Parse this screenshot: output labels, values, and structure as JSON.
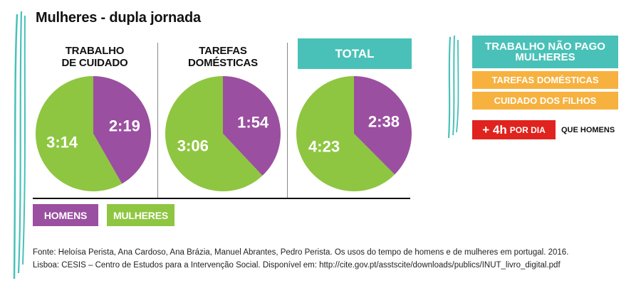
{
  "title": "Mulheres - dupla jornada",
  "colors": {
    "homens": "#9b4fa0",
    "mulheres": "#8ec641",
    "teal": "#49c1b8",
    "orange": "#f7b13f",
    "red": "#e0231e"
  },
  "chart_data": [
    {
      "type": "pie",
      "title": "TRABALHO\nDE CUIDADO",
      "slices": [
        {
          "name": "HOMENS",
          "label": "2:19",
          "minutes": 139
        },
        {
          "name": "MULHERES",
          "label": "3:14",
          "minutes": 194
        }
      ]
    },
    {
      "type": "pie",
      "title": "TAREFAS\nDOMÉSTICAS",
      "slices": [
        {
          "name": "HOMENS",
          "label": "1:54",
          "minutes": 114
        },
        {
          "name": "MULHERES",
          "label": "3:06",
          "minutes": 186
        }
      ]
    },
    {
      "type": "pie",
      "title": "TOTAL",
      "slices": [
        {
          "name": "HOMENS",
          "label": "2:38",
          "minutes": 158
        },
        {
          "name": "MULHERES",
          "label": "4:23",
          "minutes": 263
        }
      ]
    }
  ],
  "legend": {
    "homens": "HOMENS",
    "mulheres": "MULHERES"
  },
  "side": {
    "heading_line1": "TRABALHO NÃO PAGO",
    "heading_line2": "MULHERES",
    "item1": "TAREFAS DOMÉSTICAS",
    "item2": "CUIDADO DOS FILHOS",
    "extra_hours": "+ 4h",
    "extra_unit": "POR DIA",
    "extra_suffix": "QUE HOMENS"
  },
  "source": {
    "line1": "Fonte: Heloísa Perista, Ana Cardoso, Ana Brázia, Manuel Abrantes, Pedro Perista. Os usos do tempo de homens e de mulheres em portugal. 2016.",
    "line2": "Lisboa: CESIS – Centro de Estudos para a Intervenção Social. Disponível em: http://cite.gov.pt/asstscite/downloads/publics/INUT_livro_digital.pdf"
  }
}
